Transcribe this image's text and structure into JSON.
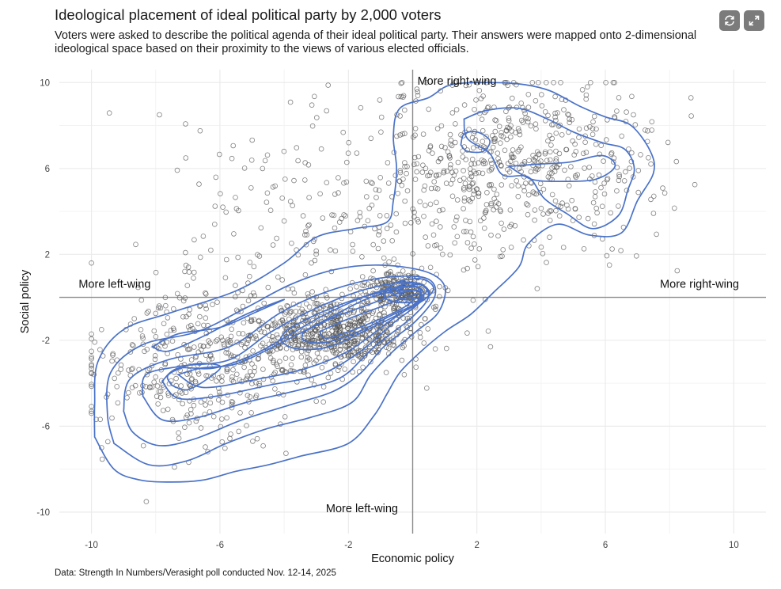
{
  "header": {
    "title": "Ideological placement of ideal political party by 2,000 voters",
    "subtitle": "Voters were asked to describe the political agenda of their ideal political party. Their answers were mapped onto 2-dimensional ideological space based on their proximity to the views of various elected officials."
  },
  "controls": {
    "refresh_icon": "refresh-icon",
    "expand_icon": "expand-icon"
  },
  "caption": "Data: Strength In Numbers/Verasight poll conducted Nov. 12-14, 2025",
  "colors": {
    "points": "#555555",
    "contours": "#4a72c8",
    "reference_lines": "#8a8a8a",
    "grid": "#ebebeb",
    "buttons": "#7b7b7b"
  },
  "chart_data": {
    "type": "scatter",
    "title": "Ideological placement of ideal political party by 2,000 voters",
    "xlabel": "Economic policy",
    "ylabel": "Social policy",
    "xlim": [
      -11,
      11
    ],
    "ylim": [
      -11,
      10.6
    ],
    "x_ticks": [
      -10,
      -6,
      -2,
      2,
      6,
      10
    ],
    "y_ticks": [
      -10,
      -6,
      -2,
      2,
      6,
      10
    ],
    "x_tick_labels": [
      "-10",
      "-6",
      "-2",
      "2",
      "6",
      "10"
    ],
    "y_tick_labels": [
      "-10",
      "-6",
      "-2",
      "2",
      "6",
      "10"
    ],
    "grid": true,
    "reference_lines": {
      "x": 0,
      "y": 0
    },
    "annotations": [
      {
        "text": "More right-wing",
        "x": 0.15,
        "y": 9.9
      },
      {
        "text": "More left-wing",
        "x": -10.4,
        "y": 0.45
      },
      {
        "text": "More right-wing",
        "x": 7.7,
        "y": 0.45
      },
      {
        "text": "More left-wing",
        "x": -2.7,
        "y": -10.0
      }
    ],
    "n_points": 2000,
    "clusters": [
      {
        "name": "",
        "center": [
          -0.4,
          0.3
        ],
        "spread": [
          0.55,
          0.45
        ],
        "share": 0.1
      },
      {
        "name": "",
        "center": [
          -2.4,
          -1.7
        ],
        "spread": [
          1.3,
          0.75
        ],
        "share": 0.3
      },
      {
        "name": "",
        "center": [
          -6.8,
          -3.2
        ],
        "spread": [
          1.7,
          1.9
        ],
        "share": 0.2
      },
      {
        "name": "",
        "center": [
          3.2,
          6.3
        ],
        "spread": [
          2.2,
          2.0
        ],
        "share": 0.28
      },
      {
        "name": "",
        "center": [
          -2.5,
          3.0
        ],
        "spread": [
          2.8,
          2.8
        ],
        "share": 0.12
      }
    ],
    "contours": [
      {
        "level": "outer",
        "points": [
          [
            -9.9,
            -6.5
          ],
          [
            -9.9,
            -5.0
          ],
          [
            -9.8,
            -3.0
          ],
          [
            -9.0,
            -1.5
          ],
          [
            -7.5,
            -0.7
          ],
          [
            -5.5,
            0.3
          ],
          [
            -4.0,
            1.6
          ],
          [
            -3.0,
            2.8
          ],
          [
            -1.8,
            3.2
          ],
          [
            -0.8,
            3.5
          ],
          [
            -0.6,
            4.5
          ],
          [
            -0.5,
            6.0
          ],
          [
            -0.6,
            7.5
          ],
          [
            -0.4,
            8.8
          ],
          [
            0.5,
            9.3
          ],
          [
            1.2,
            9.9
          ],
          [
            2.5,
            10.0
          ],
          [
            3.5,
            9.9
          ],
          [
            4.3,
            9.6
          ],
          [
            5.2,
            8.9
          ],
          [
            6.0,
            8.4
          ],
          [
            6.8,
            8.0
          ],
          [
            7.4,
            6.8
          ],
          [
            7.5,
            5.8
          ],
          [
            7.0,
            4.5
          ],
          [
            6.5,
            3.0
          ],
          [
            5.5,
            2.9
          ],
          [
            4.5,
            3.4
          ],
          [
            3.6,
            2.5
          ],
          [
            3.3,
            1.4
          ],
          [
            2.5,
            0.2
          ],
          [
            1.8,
            -0.8
          ],
          [
            1.0,
            -1.6
          ],
          [
            0.2,
            -2.6
          ],
          [
            -0.4,
            -3.5
          ],
          [
            -0.8,
            -4.5
          ],
          [
            -1.2,
            -5.5
          ],
          [
            -2.0,
            -6.8
          ],
          [
            -3.5,
            -7.4
          ],
          [
            -4.5,
            -7.8
          ],
          [
            -5.5,
            -8.1
          ],
          [
            -6.5,
            -8.5
          ],
          [
            -7.5,
            -8.6
          ],
          [
            -8.5,
            -8.5
          ],
          [
            -9.3,
            -8.0
          ],
          [
            -9.9,
            -6.5
          ]
        ]
      },
      {
        "level": "2",
        "points": [
          [
            -9.3,
            -6.8
          ],
          [
            -9.5,
            -5.5
          ],
          [
            -9.4,
            -3.5
          ],
          [
            -8.4,
            -2.2
          ],
          [
            -6.7,
            -1.6
          ],
          [
            -5.2,
            -0.5
          ],
          [
            -3.8,
            0.6
          ],
          [
            -2.4,
            1.3
          ],
          [
            -1.0,
            1.5
          ],
          [
            0.4,
            1.2
          ],
          [
            1.0,
            0.5
          ],
          [
            0.8,
            -0.7
          ],
          [
            0.1,
            -1.6
          ],
          [
            -0.6,
            -2.5
          ],
          [
            -1.3,
            -3.6
          ],
          [
            -1.9,
            -4.9
          ],
          [
            -3.2,
            -5.6
          ],
          [
            -4.5,
            -6.1
          ],
          [
            -5.8,
            -6.8
          ],
          [
            -7.0,
            -7.6
          ],
          [
            -8.2,
            -7.8
          ],
          [
            -9.3,
            -6.8
          ]
        ]
      },
      {
        "level": "3",
        "points": [
          [
            -9.0,
            -5.3
          ],
          [
            -8.8,
            -3.8
          ],
          [
            -7.6,
            -2.9
          ],
          [
            -5.7,
            -2.3
          ],
          [
            -4.1,
            -0.7
          ],
          [
            -2.6,
            0.3
          ],
          [
            -1.0,
            0.9
          ],
          [
            0.4,
            0.9
          ],
          [
            0.7,
            0.1
          ],
          [
            0.1,
            -1.1
          ],
          [
            -0.9,
            -2.3
          ],
          [
            -1.6,
            -3.5
          ],
          [
            -2.5,
            -4.4
          ],
          [
            -3.8,
            -5.0
          ],
          [
            -5.3,
            -5.7
          ],
          [
            -6.8,
            -6.6
          ],
          [
            -7.9,
            -6.9
          ],
          [
            -8.7,
            -6.3
          ],
          [
            -9.0,
            -5.3
          ]
        ]
      },
      {
        "level": "4",
        "points": [
          [
            -8.4,
            -4.6
          ],
          [
            -8.3,
            -3.6
          ],
          [
            -7.2,
            -3.2
          ],
          [
            -5.7,
            -2.9
          ],
          [
            -4.4,
            -1.6
          ],
          [
            -3.0,
            -0.5
          ],
          [
            -1.4,
            0.4
          ],
          [
            0.0,
            0.7
          ],
          [
            0.5,
            0.1
          ],
          [
            0.0,
            -0.9
          ],
          [
            -1.2,
            -2.3
          ],
          [
            -2.2,
            -3.7
          ],
          [
            -3.5,
            -4.3
          ],
          [
            -5.2,
            -4.9
          ],
          [
            -6.7,
            -5.6
          ],
          [
            -7.8,
            -5.7
          ],
          [
            -8.4,
            -4.6
          ]
        ]
      },
      {
        "level": "5",
        "points": [
          [
            -7.8,
            -3.9
          ],
          [
            -7.3,
            -3.3
          ],
          [
            -6.2,
            -3.3
          ],
          [
            -5.0,
            -2.7
          ],
          [
            -3.9,
            -1.8
          ],
          [
            -2.6,
            -0.7
          ],
          [
            -1.0,
            0.3
          ],
          [
            0.1,
            0.5
          ],
          [
            0.3,
            -0.1
          ],
          [
            -0.6,
            -1.2
          ],
          [
            -1.7,
            -2.6
          ],
          [
            -2.9,
            -3.6
          ],
          [
            -4.5,
            -4.1
          ],
          [
            -6.1,
            -4.6
          ],
          [
            -7.3,
            -4.7
          ],
          [
            -7.8,
            -3.9
          ]
        ]
      },
      {
        "level": "6",
        "points": [
          [
            -7.3,
            -3.6
          ],
          [
            -6.6,
            -3.3
          ],
          [
            -5.5,
            -3.1
          ],
          [
            -4.2,
            -2.2
          ],
          [
            -2.9,
            -1.2
          ],
          [
            -1.3,
            0.0
          ],
          [
            0.0,
            0.35
          ],
          [
            0.2,
            -0.1
          ],
          [
            -0.8,
            -1.2
          ],
          [
            -2.0,
            -2.5
          ],
          [
            -3.3,
            -3.3
          ],
          [
            -4.8,
            -3.8
          ],
          [
            -6.5,
            -4.2
          ],
          [
            -7.3,
            -3.6
          ]
        ]
      },
      {
        "level": "7",
        "points": [
          [
            -7.5,
            -4.1
          ],
          [
            -7.6,
            -3.6
          ],
          [
            -6.8,
            -3.1
          ],
          [
            -6.0,
            -3.2
          ],
          [
            -6.3,
            -3.7
          ],
          [
            -7.0,
            -4.3
          ],
          [
            -7.5,
            -4.1
          ]
        ]
      },
      {
        "level": "8",
        "points": [
          [
            -3.9,
            -1.5
          ],
          [
            -3.0,
            -0.8
          ],
          [
            -1.8,
            -0.1
          ],
          [
            -0.8,
            0.3
          ],
          [
            0.2,
            0.6
          ],
          [
            0.5,
            0.1
          ],
          [
            -0.2,
            -0.6
          ],
          [
            -1.4,
            -1.5
          ],
          [
            -2.6,
            -2.3
          ],
          [
            -3.6,
            -2.4
          ],
          [
            -4.1,
            -2.0
          ],
          [
            -3.9,
            -1.5
          ]
        ]
      },
      {
        "level": "9",
        "points": [
          [
            -3.4,
            -1.6
          ],
          [
            -2.4,
            -0.9
          ],
          [
            -1.3,
            -0.3
          ],
          [
            -0.4,
            0.2
          ],
          [
            0.2,
            0.3
          ],
          [
            0.2,
            -0.2
          ],
          [
            -0.6,
            -0.8
          ],
          [
            -1.7,
            -1.6
          ],
          [
            -2.7,
            -2.1
          ],
          [
            -3.4,
            -2.0
          ],
          [
            -3.4,
            -1.6
          ]
        ]
      },
      {
        "level": "10",
        "points": [
          [
            -2.9,
            -1.6
          ],
          [
            -2.0,
            -1.0
          ],
          [
            -1.1,
            -0.5
          ],
          [
            -0.4,
            -0.1
          ],
          [
            0.0,
            0.0
          ],
          [
            -0.2,
            -0.4
          ],
          [
            -1.0,
            -1.0
          ],
          [
            -2.0,
            -1.6
          ],
          [
            -2.7,
            -1.9
          ],
          [
            -2.9,
            -1.6
          ]
        ]
      },
      {
        "level": "11",
        "points": [
          [
            -0.9,
            0.3
          ],
          [
            -0.4,
            0.75
          ],
          [
            0.3,
            0.85
          ],
          [
            0.65,
            0.45
          ],
          [
            0.4,
            -0.05
          ],
          [
            -0.2,
            -0.25
          ],
          [
            -0.8,
            -0.1
          ],
          [
            -0.9,
            0.3
          ]
        ]
      },
      {
        "level": "12",
        "points": [
          [
            -0.7,
            0.3
          ],
          [
            -0.3,
            0.6
          ],
          [
            0.2,
            0.65
          ],
          [
            0.45,
            0.35
          ],
          [
            0.2,
            0.0
          ],
          [
            -0.3,
            -0.1
          ],
          [
            -0.7,
            0.3
          ]
        ]
      },
      {
        "level": "13",
        "points": [
          [
            -0.5,
            0.3
          ],
          [
            -0.2,
            0.5
          ],
          [
            0.15,
            0.45
          ],
          [
            0.25,
            0.25
          ],
          [
            0.0,
            0.1
          ],
          [
            -0.35,
            0.1
          ],
          [
            -0.5,
            0.3
          ]
        ]
      },
      {
        "level": "14",
        "points": [
          [
            -8.1,
            -2.3
          ],
          [
            -7.3,
            -1.7
          ],
          [
            -6.0,
            -1.4
          ],
          [
            -4.9,
            -0.7
          ],
          [
            -4.0,
            -0.1
          ],
          [
            -5.2,
            -0.8
          ],
          [
            -6.5,
            -1.8
          ],
          [
            -7.6,
            -2.5
          ],
          [
            -8.1,
            -2.3
          ]
        ]
      },
      {
        "level": "ne-1",
        "points": [
          [
            1.6,
            8.3
          ],
          [
            2.3,
            8.7
          ],
          [
            3.3,
            8.8
          ],
          [
            4.2,
            8.3
          ],
          [
            5.0,
            7.7
          ],
          [
            5.9,
            7.2
          ],
          [
            6.6,
            6.9
          ],
          [
            6.9,
            6.0
          ],
          [
            6.7,
            5.0
          ],
          [
            6.4,
            3.8
          ],
          [
            5.6,
            3.2
          ],
          [
            4.8,
            3.9
          ],
          [
            4.1,
            4.6
          ],
          [
            3.6,
            5.6
          ],
          [
            2.8,
            5.7
          ],
          [
            2.4,
            6.7
          ],
          [
            1.7,
            7.4
          ],
          [
            1.6,
            8.3
          ]
        ]
      },
      {
        "level": "ne-2",
        "points": [
          [
            3.0,
            6.1
          ],
          [
            3.9,
            6.2
          ],
          [
            4.9,
            6.3
          ],
          [
            5.9,
            6.6
          ],
          [
            6.3,
            6.1
          ],
          [
            5.7,
            5.5
          ],
          [
            4.6,
            5.4
          ],
          [
            3.7,
            5.5
          ],
          [
            3.0,
            6.1
          ]
        ]
      },
      {
        "level": "ne-3",
        "points": [
          [
            1.5,
            7.1
          ],
          [
            1.6,
            7.6
          ],
          [
            2.0,
            7.7
          ],
          [
            2.4,
            7.3
          ],
          [
            2.2,
            6.8
          ],
          [
            1.7,
            6.8
          ],
          [
            1.5,
            7.1
          ]
        ]
      }
    ]
  }
}
